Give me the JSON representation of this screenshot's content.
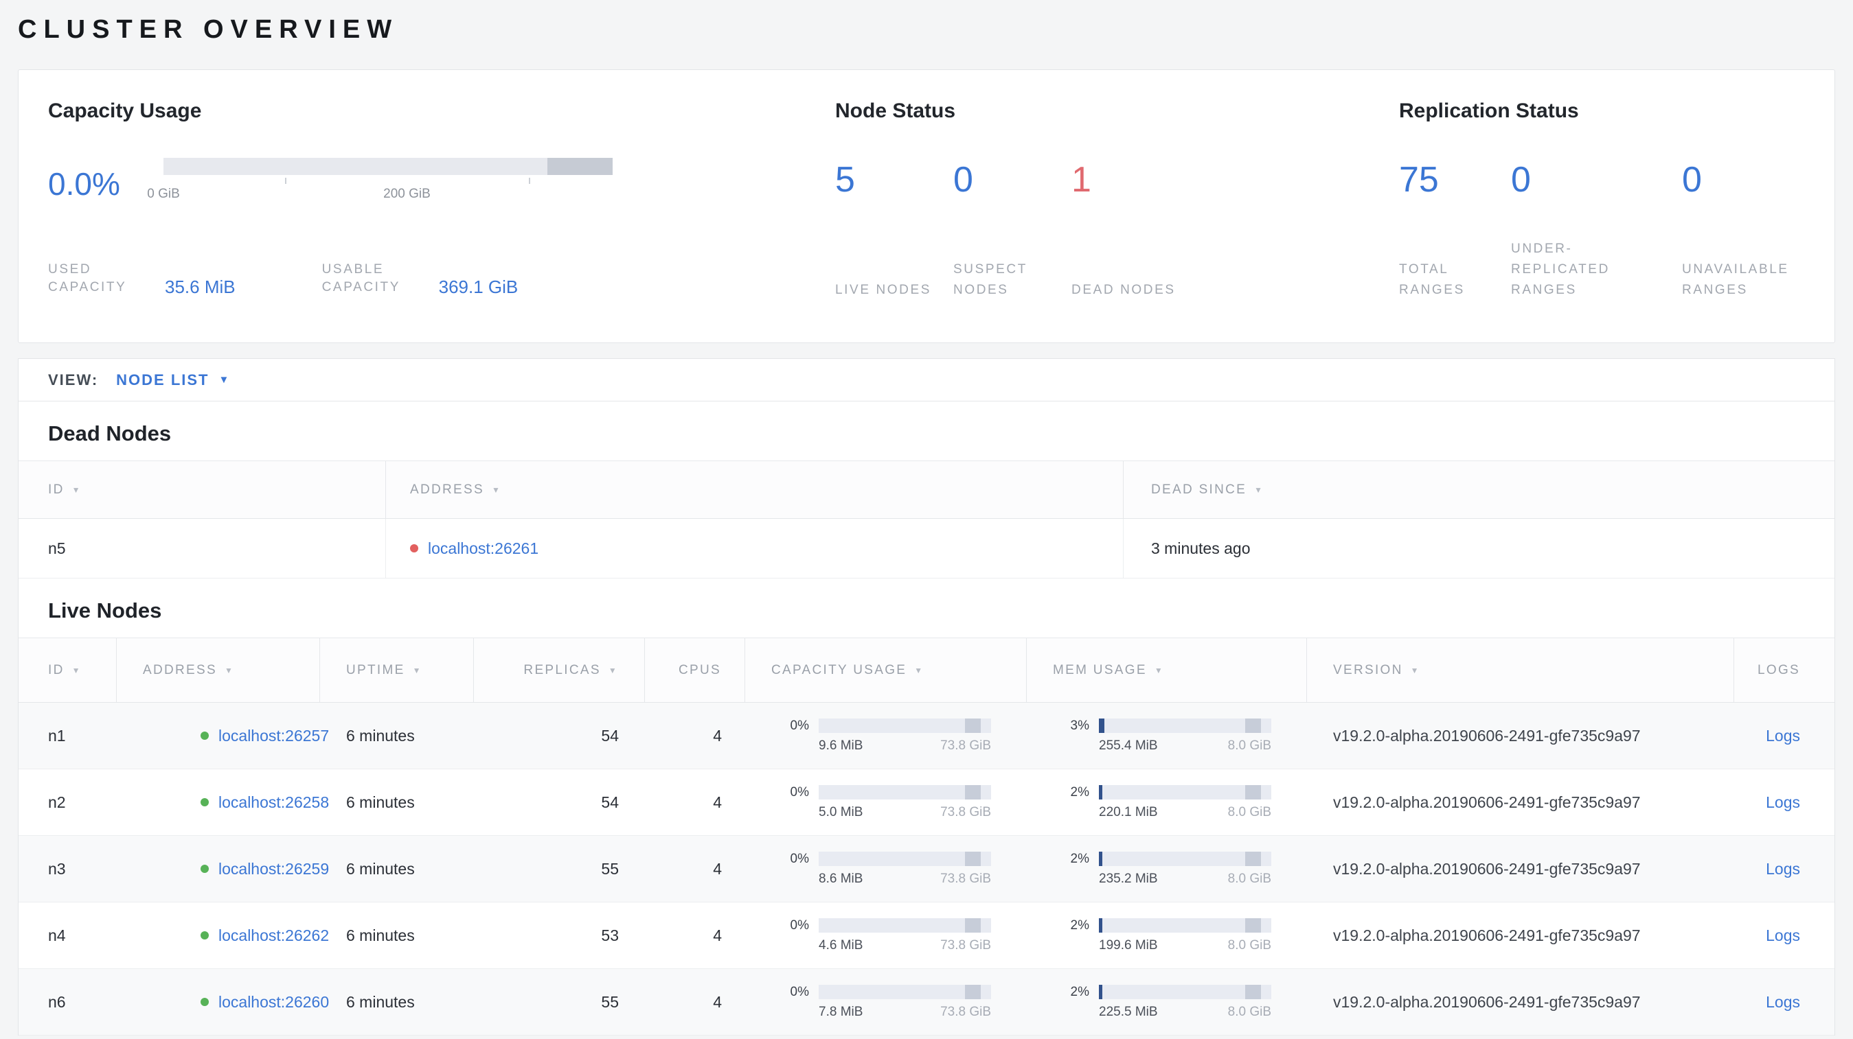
{
  "page": {
    "title": "CLUSTER OVERVIEW"
  },
  "icons": {
    "sort_arrow": "▼",
    "dropdown_caret": "▼"
  },
  "colors": {
    "accent_blue": "#3b76d4",
    "danger_red": "#e0696f",
    "live_green": "#57b257",
    "bar_used_navy": "#32528c"
  },
  "summary": {
    "capacity": {
      "title": "Capacity Usage",
      "percent": "0.0%",
      "ticks": [
        {
          "label": "0 GiB",
          "pos": 0
        },
        {
          "label": "200 GiB",
          "pos": 54.2
        }
      ],
      "used_label": "USED CAPACITY",
      "used_value": "35.6 MiB",
      "usable_label": "USABLE CAPACITY",
      "usable_value": "369.1 GiB"
    },
    "node_status": {
      "title": "Node Status",
      "stats": [
        {
          "value": "5",
          "label": "LIVE NODES",
          "color": "#3b76d4"
        },
        {
          "value": "0",
          "label": "SUSPECT NODES",
          "color": "#3b76d4"
        },
        {
          "value": "1",
          "label": "DEAD NODES",
          "color": "#e0696f"
        }
      ]
    },
    "replication": {
      "title": "Replication Status",
      "stats": [
        {
          "value": "75",
          "label": "TOTAL RANGES",
          "color": "#3b76d4"
        },
        {
          "value": "0",
          "label": "UNDER-REPLICATED RANGES",
          "color": "#3b76d4"
        },
        {
          "value": "0",
          "label": "UNAVAILABLE RANGES",
          "color": "#3b76d4"
        }
      ]
    }
  },
  "view_bar": {
    "label": "VIEW:",
    "selected": "NODE LIST"
  },
  "dead_nodes": {
    "title": "Dead Nodes",
    "columns": [
      {
        "label": "ID"
      },
      {
        "label": "ADDRESS"
      },
      {
        "label": "DEAD SINCE"
      }
    ],
    "rows": [
      {
        "id": "n5",
        "address": "localhost:26261",
        "dead_since": "3 minutes ago"
      }
    ]
  },
  "live_nodes": {
    "title": "Live Nodes",
    "columns": [
      {
        "label": "ID"
      },
      {
        "label": "ADDRESS"
      },
      {
        "label": "UPTIME"
      },
      {
        "label": "REPLICAS"
      },
      {
        "label": "CPUS"
      },
      {
        "label": "CAPACITY USAGE"
      },
      {
        "label": "MEM USAGE"
      },
      {
        "label": "VERSION"
      },
      {
        "label": "LOGS"
      }
    ],
    "rows": [
      {
        "id": "n1",
        "address": "localhost:26257",
        "uptime": "6 minutes",
        "replicas": "54",
        "cpus": "4",
        "capacity_pct": "0%",
        "capacity_used": "9.6 MiB",
        "capacity_total": "73.8 GiB",
        "mem_pct": "3%",
        "mem_used": "255.4 MiB",
        "mem_total": "8.0 GiB",
        "version": "v19.2.0-alpha.20190606-2491-gfe735c9a97",
        "logs": "Logs"
      },
      {
        "id": "n2",
        "address": "localhost:26258",
        "uptime": "6 minutes",
        "replicas": "54",
        "cpus": "4",
        "capacity_pct": "0%",
        "capacity_used": "5.0 MiB",
        "capacity_total": "73.8 GiB",
        "mem_pct": "2%",
        "mem_used": "220.1 MiB",
        "mem_total": "8.0 GiB",
        "version": "v19.2.0-alpha.20190606-2491-gfe735c9a97",
        "logs": "Logs"
      },
      {
        "id": "n3",
        "address": "localhost:26259",
        "uptime": "6 minutes",
        "replicas": "55",
        "cpus": "4",
        "capacity_pct": "0%",
        "capacity_used": "8.6 MiB",
        "capacity_total": "73.8 GiB",
        "mem_pct": "2%",
        "mem_used": "235.2 MiB",
        "mem_total": "8.0 GiB",
        "version": "v19.2.0-alpha.20190606-2491-gfe735c9a97",
        "logs": "Logs"
      },
      {
        "id": "n4",
        "address": "localhost:26262",
        "uptime": "6 minutes",
        "replicas": "53",
        "cpus": "4",
        "capacity_pct": "0%",
        "capacity_used": "4.6 MiB",
        "capacity_total": "73.8 GiB",
        "mem_pct": "2%",
        "mem_used": "199.6 MiB",
        "mem_total": "8.0 GiB",
        "version": "v19.2.0-alpha.20190606-2491-gfe735c9a97",
        "logs": "Logs"
      },
      {
        "id": "n6",
        "address": "localhost:26260",
        "uptime": "6 minutes",
        "replicas": "55",
        "cpus": "4",
        "capacity_pct": "0%",
        "capacity_used": "7.8 MiB",
        "capacity_total": "73.8 GiB",
        "mem_pct": "2%",
        "mem_used": "225.5 MiB",
        "mem_total": "8.0 GiB",
        "version": "v19.2.0-alpha.20190606-2491-gfe735c9a97",
        "logs": "Logs"
      }
    ]
  }
}
